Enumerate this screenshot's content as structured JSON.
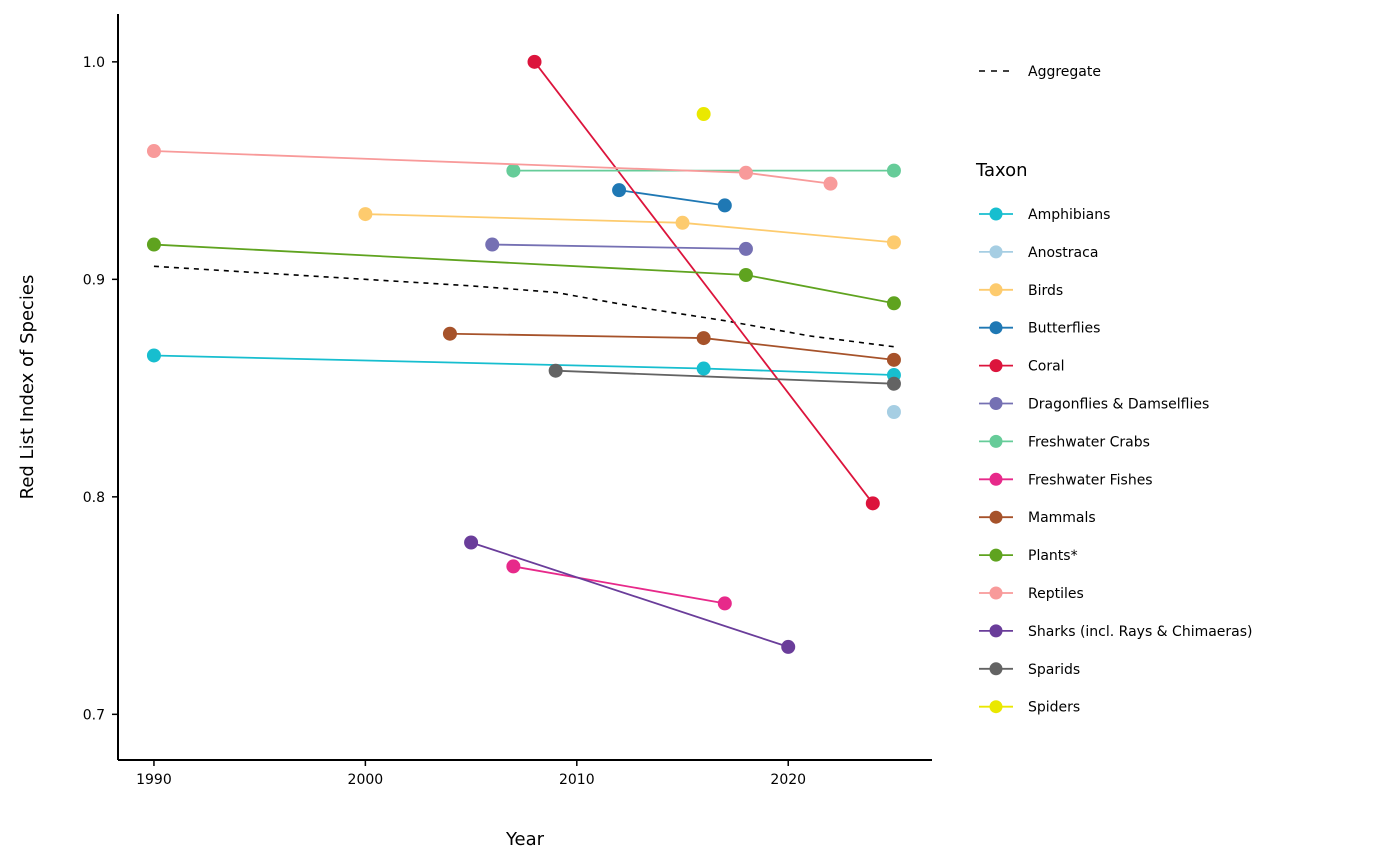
{
  "chart_data": {
    "type": "line",
    "title": "",
    "xlabel": "Year",
    "ylabel": "Red List Index of Species",
    "xlim": [
      1988.3,
      2026.8
    ],
    "ylim": [
      0.679,
      1.022
    ],
    "xticks": [
      1990,
      2000,
      2010,
      2020
    ],
    "xtick_labels": [
      "1990",
      "2000",
      "2010",
      "2020"
    ],
    "yticks": [
      0.7,
      0.8,
      0.9,
      1.0
    ],
    "ytick_labels": [
      "0.7",
      "0.8",
      "0.9",
      "1.0"
    ],
    "grid": false,
    "legend_position": "right",
    "aggregate": {
      "name": "Aggregate",
      "style": "dashed",
      "color": "#000000",
      "points": [
        [
          1990,
          0.906
        ],
        [
          1995,
          0.903
        ],
        [
          2000,
          0.9
        ],
        [
          2005,
          0.897
        ],
        [
          2009,
          0.894
        ],
        [
          2013,
          0.887
        ],
        [
          2017,
          0.881
        ],
        [
          2021,
          0.874
        ],
        [
          2025,
          0.869
        ]
      ]
    },
    "legend_title": "Taxon",
    "series": [
      {
        "name": "Amphibians",
        "color": "#17BECF",
        "points": [
          [
            1990,
            0.865
          ],
          [
            2016,
            0.859
          ],
          [
            2025,
            0.856
          ]
        ]
      },
      {
        "name": "Anostraca",
        "color": "#A6CEE3",
        "points": [
          [
            2025,
            0.839
          ]
        ]
      },
      {
        "name": "Birds",
        "color": "#FDCB6E",
        "points": [
          [
            2000,
            0.93
          ],
          [
            2015,
            0.926
          ],
          [
            2025,
            0.917
          ]
        ]
      },
      {
        "name": "Butterflies",
        "color": "#1F78B4",
        "points": [
          [
            2012,
            0.941
          ],
          [
            2017,
            0.934
          ]
        ]
      },
      {
        "name": "Coral",
        "color": "#DC143C",
        "points": [
          [
            2008,
            1.0
          ],
          [
            2024,
            0.797
          ]
        ]
      },
      {
        "name": "Dragonflies & Damselflies",
        "color": "#7570B3",
        "points": [
          [
            2006,
            0.916
          ],
          [
            2018,
            0.914
          ]
        ]
      },
      {
        "name": "Freshwater Crabs",
        "color": "#66CC99",
        "points": [
          [
            2007,
            0.95
          ],
          [
            2025,
            0.95
          ]
        ]
      },
      {
        "name": "Freshwater Fishes",
        "color": "#E7298A",
        "points": [
          [
            2007,
            0.768
          ],
          [
            2017,
            0.751
          ]
        ]
      },
      {
        "name": "Mammals",
        "color": "#A6522A",
        "points": [
          [
            2004,
            0.875
          ],
          [
            2016,
            0.873
          ],
          [
            2025,
            0.863
          ]
        ]
      },
      {
        "name": "Plants*",
        "color": "#5FA31F",
        "points": [
          [
            1990,
            0.916
          ],
          [
            2018,
            0.902
          ],
          [
            2025,
            0.889
          ]
        ]
      },
      {
        "name": "Reptiles",
        "color": "#F89A9A",
        "points": [
          [
            1990,
            0.959
          ],
          [
            2018,
            0.949
          ],
          [
            2022,
            0.944
          ]
        ]
      },
      {
        "name": "Sharks (incl. Rays & Chimaeras)",
        "color": "#6A3D9A",
        "points": [
          [
            2005,
            0.779
          ],
          [
            2020,
            0.731
          ]
        ]
      },
      {
        "name": "Sparids",
        "color": "#636363",
        "points": [
          [
            2009,
            0.858
          ],
          [
            2025,
            0.852
          ]
        ]
      },
      {
        "name": "Spiders",
        "color": "#EAE800",
        "points": [
          [
            2016,
            0.976
          ]
        ]
      }
    ]
  }
}
